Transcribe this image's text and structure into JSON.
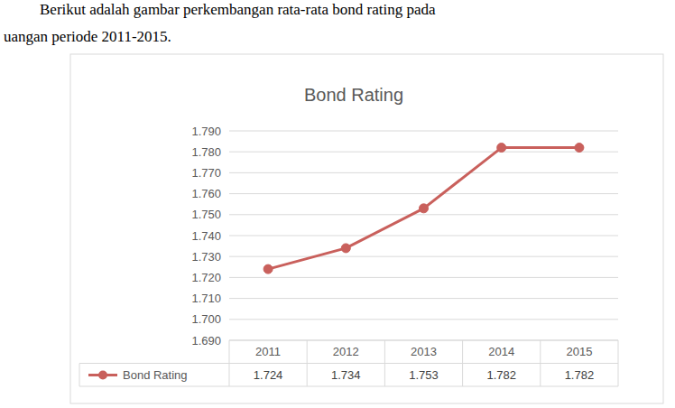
{
  "paragraph": [
    "Berikut adalah gambar perkembangan rata-rata bond rating pada",
    "uangan periode 2011-2015."
  ],
  "chart_data": {
    "type": "line",
    "title": "Bond Rating",
    "categories": [
      "2011",
      "2012",
      "2013",
      "2014",
      "2015"
    ],
    "series": [
      {
        "name": "Bond Rating",
        "color": "#c9605c",
        "marker": "circle",
        "values": [
          1.724,
          1.734,
          1.753,
          1.782,
          1.782
        ]
      }
    ],
    "ylim": [
      1.69,
      1.79
    ],
    "yticks": [
      {
        "value": 1.69,
        "label": "1.690"
      },
      {
        "value": 1.7,
        "label": "1.700"
      },
      {
        "value": 1.71,
        "label": "1.710"
      },
      {
        "value": 1.72,
        "label": "1.720"
      },
      {
        "value": 1.73,
        "label": "1.730"
      },
      {
        "value": 1.74,
        "label": "1.740"
      },
      {
        "value": 1.75,
        "label": "1.750"
      },
      {
        "value": 1.76,
        "label": "1.760"
      },
      {
        "value": 1.77,
        "label": "1.770"
      },
      {
        "value": 1.78,
        "label": "1.780"
      },
      {
        "value": 1.79,
        "label": "1.790"
      }
    ],
    "grid": true,
    "data_labels": true
  }
}
